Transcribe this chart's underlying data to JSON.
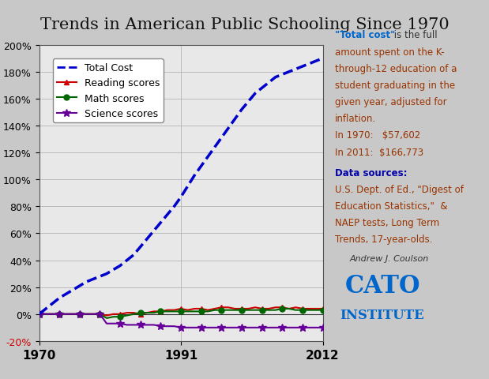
{
  "title": "Trends in American Public Schooling Since 1970",
  "title_color_black": "#000000",
  "title_color_red": "#cc0000",
  "bg_color": "#d3d3d3",
  "plot_bg_color": "#e8e8e8",
  "years": [
    1970,
    1971,
    1972,
    1973,
    1974,
    1975,
    1976,
    1977,
    1978,
    1979,
    1980,
    1981,
    1982,
    1983,
    1984,
    1985,
    1986,
    1987,
    1988,
    1989,
    1990,
    1991,
    1992,
    1993,
    1994,
    1995,
    1996,
    1997,
    1998,
    1999,
    2000,
    2001,
    2002,
    2003,
    2004,
    2005,
    2006,
    2007,
    2008,
    2009,
    2010,
    2011,
    2012
  ],
  "total_cost": [
    0,
    4,
    8,
    12,
    15,
    18,
    21,
    24,
    26,
    28,
    30,
    33,
    36,
    40,
    44,
    50,
    56,
    62,
    68,
    74,
    80,
    87,
    95,
    103,
    110,
    117,
    124,
    131,
    138,
    145,
    152,
    158,
    164,
    168,
    172,
    176,
    178,
    180,
    182,
    184,
    186,
    188,
    190
  ],
  "reading_scores": [
    0,
    0,
    0,
    0,
    0,
    0,
    0,
    0,
    0,
    0,
    -1,
    0,
    0,
    1,
    1,
    0,
    1,
    2,
    2,
    3,
    3,
    4,
    3,
    4,
    4,
    3,
    4,
    5,
    5,
    4,
    4,
    4,
    5,
    4,
    4,
    5,
    5,
    4,
    5,
    4,
    4,
    4,
    4
  ],
  "math_scores": [
    0,
    0,
    0,
    0,
    0,
    0,
    0,
    0,
    0,
    0,
    -3,
    -2,
    -2,
    -1,
    0,
    1,
    1,
    1,
    2,
    2,
    2,
    2,
    2,
    2,
    2,
    2,
    3,
    3,
    3,
    3,
    3,
    3,
    3,
    3,
    3,
    3,
    4,
    4,
    3,
    3,
    3,
    3,
    3
  ],
  "science_scores": [
    0,
    0,
    0,
    0,
    0,
    0,
    0,
    0,
    0,
    0,
    -7,
    -7,
    -7,
    -8,
    -8,
    -8,
    -8,
    -8,
    -9,
    -9,
    -9,
    -10,
    -10,
    -10,
    -10,
    -10,
    -10,
    -10,
    -10,
    -10,
    -10,
    -10,
    -10,
    -10,
    -10,
    -10,
    -10,
    -10,
    -10,
    -10,
    -10,
    -10,
    -10
  ],
  "ylim": [
    -20,
    200
  ],
  "yticks": [
    -20,
    0,
    20,
    40,
    60,
    80,
    100,
    120,
    140,
    160,
    180,
    200
  ],
  "ytick_labels": [
    "-20%",
    "0%",
    "20%",
    "40%",
    "60%",
    "80%",
    "100%",
    "120%",
    "140%",
    "160%",
    "180%",
    "200%"
  ],
  "xticks": [
    1970,
    1991,
    2012
  ],
  "total_cost_color": "#0000cc",
  "reading_color": "#cc0000",
  "math_color": "#006600",
  "science_color": "#660099",
  "annotation_text_blue": "\"Total cost\" is the full\namount spent on the K-\nthrough-12 education of a\nstudent graduating in the\ngiven year, adjusted for\ninflation.",
  "annotation_text_black": "In 1970:   $57,602\nIn 2011:  $166,773",
  "datasources_label": "Data sources:",
  "datasources_text": "U.S. Dept. of Ed., \"Digest of\nEducation Statistics,\"  &\nNAEP tests, Long Term\nTrends, 17-year-olds.",
  "author_text": "Andrew J. Coulson",
  "cato_text": "CATO\nINSTITUTE",
  "cato_color": "#0066cc"
}
